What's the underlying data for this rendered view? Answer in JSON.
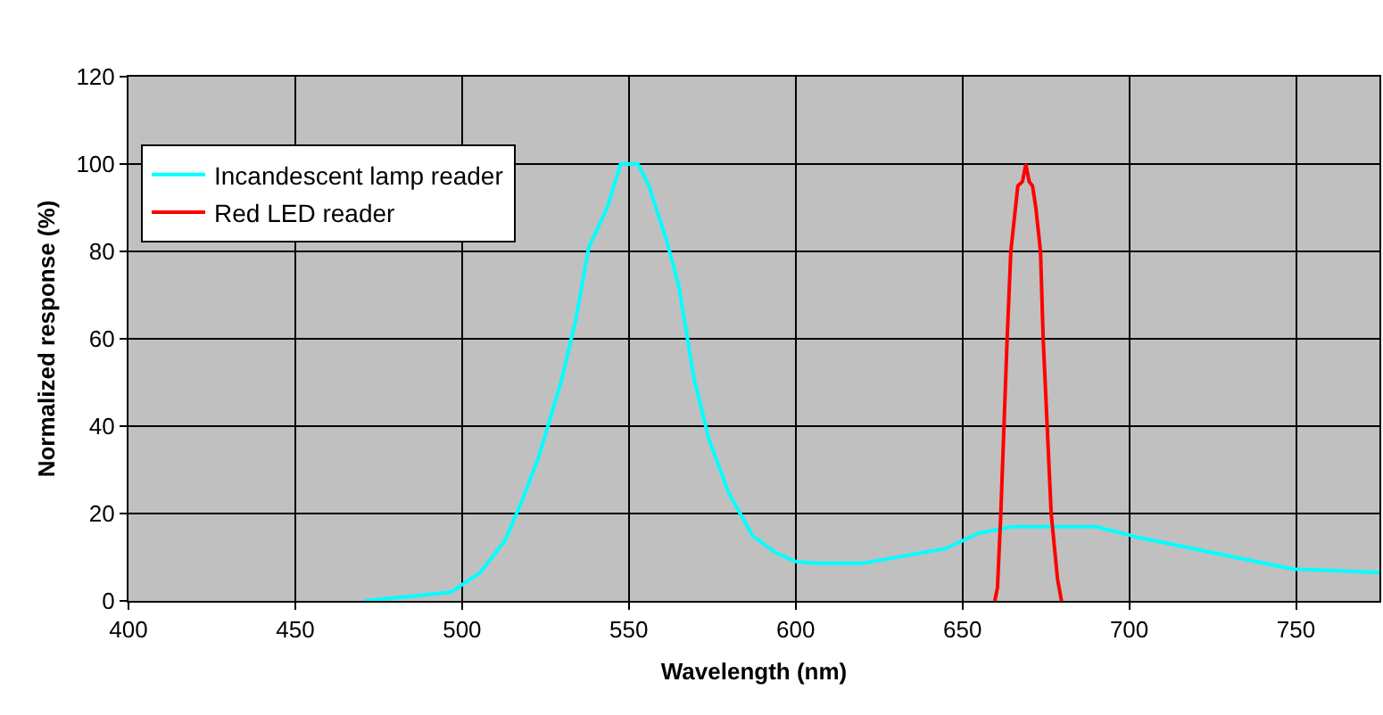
{
  "chart_data": {
    "type": "line",
    "xlabel": "Wavelength (nm)",
    "ylabel": "Normalized response (%)",
    "xlim": [
      400,
      775
    ],
    "xticks": [
      400,
      450,
      500,
      550,
      600,
      650,
      700,
      750
    ],
    "ylim": [
      0,
      120
    ],
    "yticks": [
      0,
      20,
      40,
      60,
      80,
      100,
      120
    ],
    "grid": true,
    "legend": "top left",
    "marker": "none",
    "line_style": "solid",
    "series": [
      {
        "name": "Incandescent lamp reader",
        "color": "#00ffff",
        "x": [
          470.6,
          483,
          496.6,
          505.5,
          513,
          518,
          523,
          529.6,
          534,
          538,
          543.5,
          547.5,
          552.7,
          556,
          561.5,
          565,
          569.5,
          574,
          580,
          587,
          594,
          600,
          606,
          620,
          645,
          655,
          665,
          690,
          703,
          749,
          775
        ],
        "values": [
          0,
          0.9,
          2,
          6.5,
          14,
          23,
          33,
          50,
          64,
          81,
          90,
          100,
          100,
          95,
          82,
          72,
          51,
          37,
          24.6,
          15,
          11,
          9,
          8.6,
          8.6,
          12,
          15.5,
          17,
          17,
          14.5,
          7.3,
          6.5
        ]
      },
      {
        "name": "Red LED reader",
        "color": "#ff0000",
        "x": [
          659.7,
          660.5,
          661.5,
          663.4,
          664.5,
          666.6,
          668,
          669,
          670,
          671,
          672,
          673.4,
          674.2,
          676.6,
          678.5,
          679.7
        ],
        "values": [
          0,
          3,
          20,
          60,
          80,
          95,
          96,
          100,
          96,
          95,
          90,
          80,
          60,
          20,
          5,
          0
        ]
      }
    ]
  }
}
